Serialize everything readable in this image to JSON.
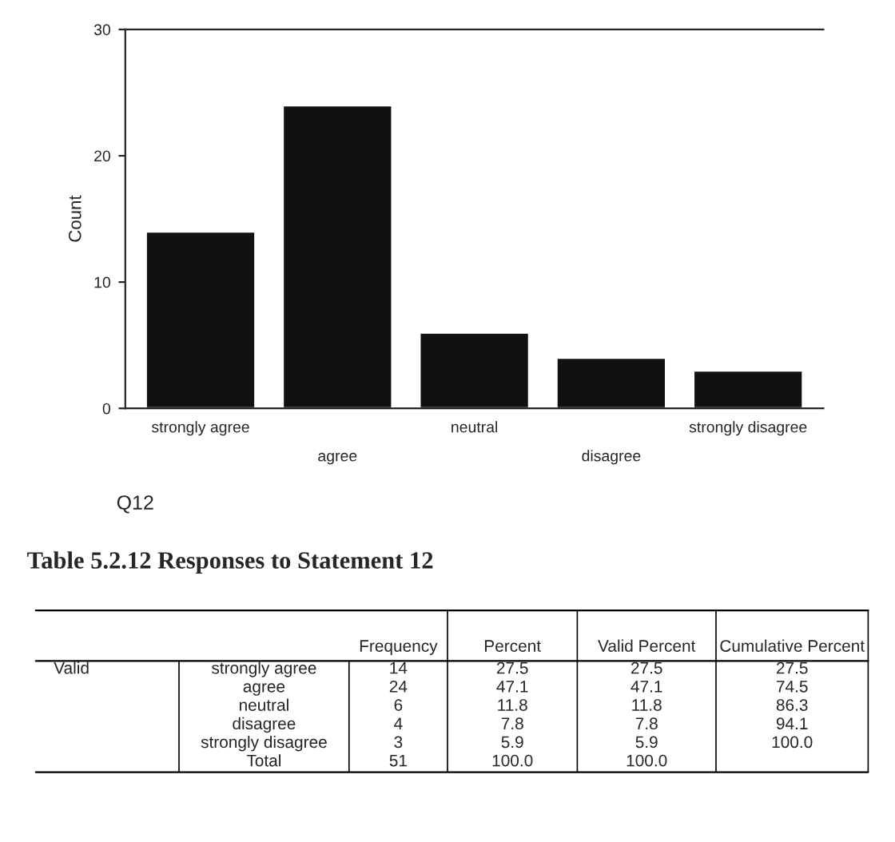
{
  "chart_data": {
    "type": "bar",
    "categories": [
      "strongly agree",
      "agree",
      "neutral",
      "disagree",
      "strongly disagree"
    ],
    "values": [
      14,
      24,
      6,
      4,
      3
    ],
    "color": "#111111",
    "ylim": [
      0,
      30
    ],
    "yticks": [
      0,
      10,
      20,
      30
    ],
    "ylabel": "Count",
    "xlabel": "Q12",
    "grid": false,
    "annotations": [
      "Table 5.2.12 Responses to Statement 12",
      "Frequency",
      "Percent",
      "Valid Percent",
      "Cumulative Percent",
      "Valid",
      "Total",
      "14",
      "27.5",
      "27.5",
      "27.5",
      "24",
      "47.1",
      "47.1",
      "74.5",
      "6",
      "11.8",
      "11.8",
      "86.3",
      "4",
      "7.8",
      "7.8",
      "94.1",
      "3",
      "5.9",
      "5.9",
      "100.0",
      "51",
      "100.0",
      "100.0"
    ]
  }
}
